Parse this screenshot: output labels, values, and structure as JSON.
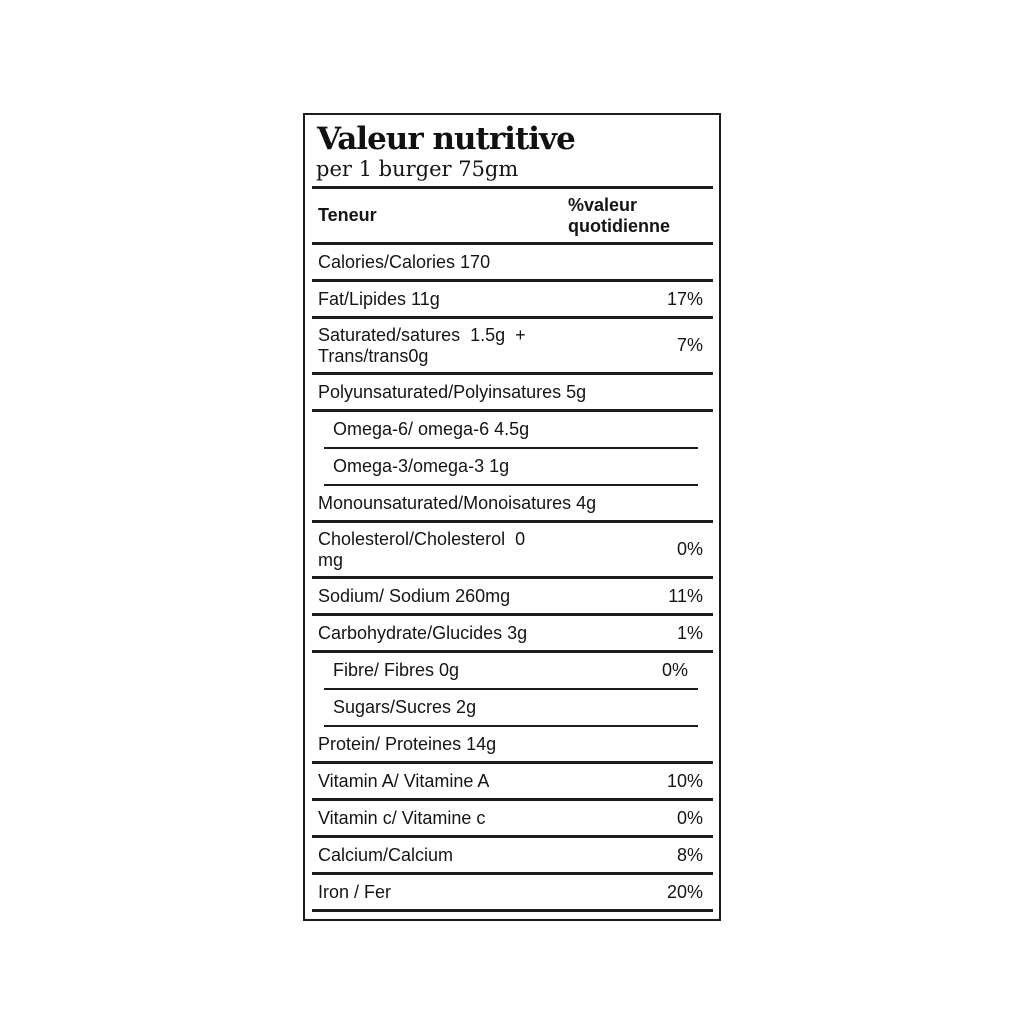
{
  "label": {
    "title": "Valeur nutritive",
    "serving": "per 1 burger 75gm",
    "columns": {
      "nutrient": "Teneur",
      "daily_value": "%valeur quotidienne"
    },
    "rows": [
      {
        "label": "Calories/Calories 170",
        "dv": "",
        "indent": false
      },
      {
        "label": "Fat/Lipides 11g",
        "dv": "17%",
        "indent": false
      },
      {
        "label": "Saturated/satures  1.5g  +",
        "label2": "Trans/trans0g",
        "dv": "7%",
        "indent": false
      },
      {
        "label": "Polyunsaturated/Polyinsatures 5g",
        "dv": "",
        "indent": false
      },
      {
        "label": "Omega-6/ omega-6 4.5g",
        "dv": "",
        "indent": true
      },
      {
        "label": "Omega-3/omega-3 1g",
        "dv": "",
        "indent": true
      },
      {
        "label": "Monounsaturated/Monoisatures 4g",
        "dv": "",
        "indent": false
      },
      {
        "label": "Cholesterol/Cholesterol  0",
        "label2": "mg",
        "dv": "0%",
        "indent": false
      },
      {
        "label": "Sodium/ Sodium 260mg",
        "dv": "11%",
        "indent": false
      },
      {
        "label": "Carbohydrate/Glucides 3g",
        "dv": "1%",
        "indent": false
      },
      {
        "label": "Fibre/ Fibres 0g",
        "dv": "0%",
        "indent": true
      },
      {
        "label": "Sugars/Sucres 2g",
        "dv": "",
        "indent": true
      },
      {
        "label": "Protein/ Proteines 14g",
        "dv": "",
        "indent": false
      },
      {
        "label": "Vitamin A/ Vitamine A",
        "dv": "10%",
        "indent": false
      },
      {
        "label": "Vitamin c/ Vitamine c",
        "dv": "0%",
        "indent": false
      },
      {
        "label": "Calcium/Calcium",
        "dv": "8%",
        "indent": false
      },
      {
        "label": "Iron / Fer",
        "dv": "20%",
        "indent": false
      }
    ],
    "colors": {
      "text": "#151515",
      "border": "#1c1c1c",
      "background": "#ffffff"
    }
  }
}
